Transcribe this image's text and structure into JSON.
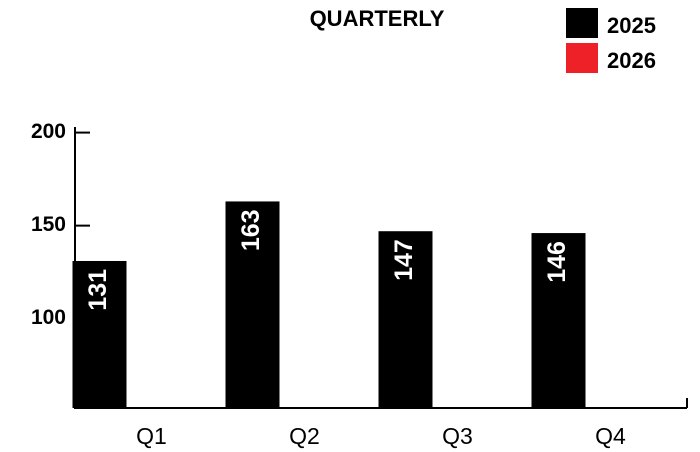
{
  "chart_data": {
    "type": "bar",
    "title": "QUARTERLY",
    "categories": [
      "Q1",
      "Q2",
      "Q3",
      "Q4"
    ],
    "series": [
      {
        "name": "2025",
        "color": "#000000",
        "values": [
          131,
          163,
          147,
          146
        ]
      },
      {
        "name": "2026",
        "color": "#ee2028",
        "values": [
          null,
          null,
          null,
          null
        ]
      }
    ],
    "ylim": [
      52,
      203
    ],
    "yticks": [
      100,
      150,
      200
    ],
    "grid": false,
    "legend": "top-right"
  }
}
